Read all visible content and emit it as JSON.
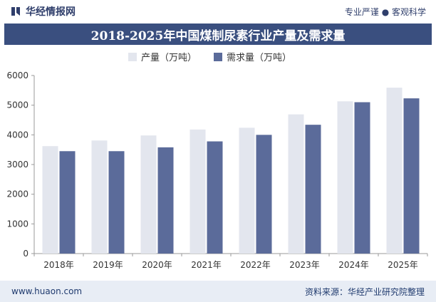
{
  "header": {
    "brand": "华经情报网",
    "tagline": "专业严谨 ● 客观科学"
  },
  "title": "2018-2025年中国煤制尿素行业产量及需求量",
  "footer": {
    "website": "www.huaon.com",
    "source": "资料来源：华经产业研究院整理"
  },
  "colors": {
    "production": "#e3e6ee",
    "demand": "#5b6b9a",
    "title_bg": "#3a4f7f"
  },
  "chart_data": {
    "type": "bar",
    "categories": [
      "2018年",
      "2019年",
      "2020年",
      "2021年",
      "2022年",
      "2023年",
      "2024年",
      "2025年"
    ],
    "series": [
      {
        "name": "产量（万吨）",
        "values": [
          3620,
          3810,
          3980,
          4180,
          4240,
          4690,
          5130,
          5590
        ]
      },
      {
        "name": "需求量（万吨）",
        "values": [
          3450,
          3450,
          3580,
          3780,
          4000,
          4340,
          5100,
          5230
        ]
      }
    ],
    "ylim": [
      0,
      6000
    ],
    "yticks": [
      0,
      1000,
      2000,
      3000,
      4000,
      5000,
      6000
    ],
    "legend": "top-center",
    "grid": false
  }
}
